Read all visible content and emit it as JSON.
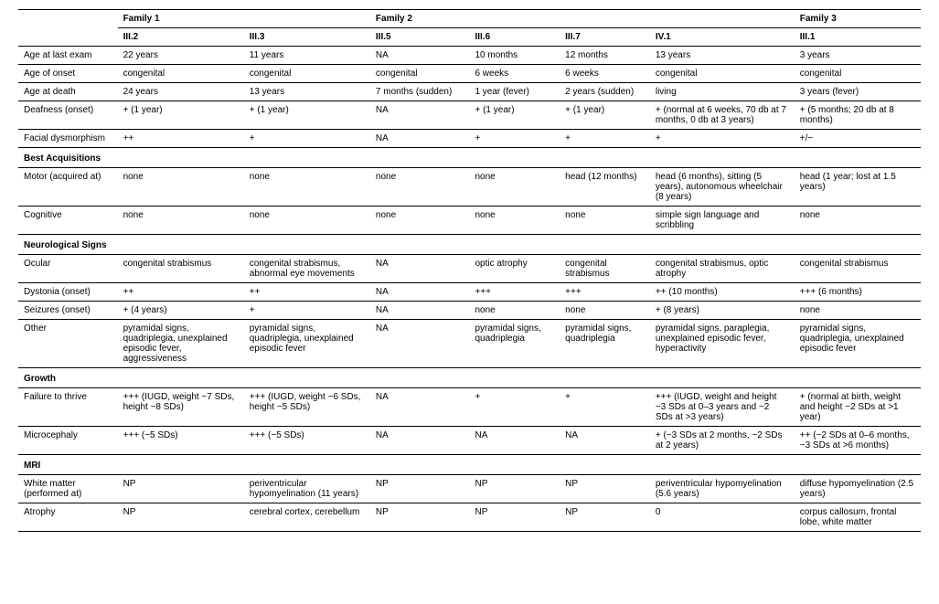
{
  "families": {
    "f1": "Family 1",
    "f2": "Family 2",
    "f3": "Family 3"
  },
  "cols": [
    "III.2",
    "III.3",
    "III.5",
    "III.6",
    "III.7",
    "IV.1",
    "III.1"
  ],
  "rows": {
    "age_last_exam": {
      "label": "Age at last exam",
      "v": [
        "22 years",
        "11 years",
        "NA",
        "10 months",
        "12 months",
        "13 years",
        "3 years"
      ]
    },
    "age_onset": {
      "label": "Age of onset",
      "v": [
        "congenital",
        "congenital",
        "congenital",
        "6 weeks",
        "6 weeks",
        "congenital",
        "congenital"
      ]
    },
    "age_death": {
      "label": "Age at death",
      "v": [
        "24 years",
        "13 years",
        "7 months (sudden)",
        "1 year (fever)",
        "2 years (sudden)",
        "living",
        "3 years (fever)"
      ]
    },
    "deafness": {
      "label": "Deafness (onset)",
      "v": [
        "+ (1 year)",
        "+ (1 year)",
        "NA",
        "+ (1 year)",
        "+ (1 year)",
        "+ (normal at 6 weeks, 70 db at 7 months, 0 db at 3 years)",
        "+ (5 months; 20 db at 8 months)"
      ]
    },
    "facial": {
      "label": "Facial dysmorphism",
      "v": [
        "++",
        "+",
        "NA",
        "+",
        "+",
        "+",
        "+/−"
      ]
    },
    "sec_best": "Best Acquisitions",
    "motor": {
      "label": "Motor (acquired at)",
      "v": [
        "none",
        "none",
        "none",
        "none",
        "head (12 months)",
        "head (6 months), sitting (5 years), autonomous wheelchair (8 years)",
        "head (1 year; lost at 1.5 years)"
      ]
    },
    "cognitive": {
      "label": "Cognitive",
      "v": [
        "none",
        "none",
        "none",
        "none",
        "none",
        "simple sign language and scribbling",
        "none"
      ]
    },
    "sec_neuro": "Neurological Signs",
    "ocular": {
      "label": "Ocular",
      "v": [
        "congenital strabismus",
        "congenital strabismus, abnormal eye movements",
        "NA",
        "optic atrophy",
        "congenital strabismus",
        "congenital strabismus, optic atrophy",
        "congenital strabismus"
      ]
    },
    "dystonia": {
      "label": "Dystonia (onset)",
      "v": [
        "++",
        "++",
        "NA",
        "+++",
        "+++",
        "++ (10 months)",
        "+++ (6 months)"
      ]
    },
    "seizures": {
      "label": "Seizures (onset)",
      "v": [
        "+ (4 years)",
        "+",
        "NA",
        "none",
        "none",
        "+ (8 years)",
        "none"
      ]
    },
    "other": {
      "label": "Other",
      "v": [
        "pyramidal signs, quadriplegia, unexplained episodic fever, aggressiveness",
        "pyramidal signs, quadriplegia, unexplained episodic fever",
        "NA",
        "pyramidal signs, quadriplegia",
        "pyramidal signs, quadriplegia",
        "pyramidal signs, paraplegia, unexplained episodic fever, hyperactivity",
        "pyramidal signs, quadriplegia, unexplained episodic fever"
      ]
    },
    "sec_growth": "Growth",
    "failure": {
      "label": "Failure to thrive",
      "v": [
        "+++ (IUGD, weight −7 SDs, height −8 SDs)",
        "+++ (IUGD, weight −6 SDs, height −5 SDs)",
        "NA",
        "+",
        "+",
        "+++ (IUGD, weight and height −3 SDs at 0–3 years and −2 SDs at >3 years)",
        "+ (normal at birth, weight and height −2 SDs at >1 year)"
      ]
    },
    "microcephaly": {
      "label": "Microcephaly",
      "v": [
        "+++ (−5 SDs)",
        "+++ (−5 SDs)",
        "NA",
        "NA",
        "NA",
        "+ (−3 SDs at 2 months, −2 SDs at 2 years)",
        "++ (−2 SDs at 0–6 months, −3 SDs at >6 months)"
      ]
    },
    "sec_mri": "MRI",
    "white_matter": {
      "label": "White matter (performed at)",
      "v": [
        "NP",
        "periventricular hypomyelination (11 years)",
        "NP",
        "NP",
        "NP",
        "periventricular hypomyelination (5.6 years)",
        "diffuse hypomyelination (2.5 years)"
      ]
    },
    "atrophy": {
      "label": "Atrophy",
      "v": [
        "NP",
        "cerebral cortex, cerebellum",
        "NP",
        "NP",
        "NP",
        "0",
        "corpus callosum, frontal lobe, white matter"
      ]
    }
  }
}
